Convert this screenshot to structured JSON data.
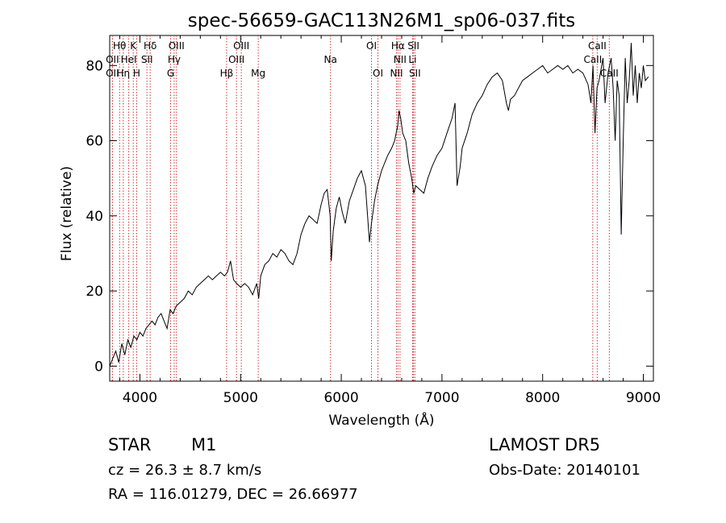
{
  "chart_data": {
    "type": "line",
    "title": "spec-56659-GAC113N26M1_sp06-037.fits",
    "xlabel": "Wavelength (Å)",
    "ylabel": "Flux (relative)",
    "xlim": [
      3700,
      9100
    ],
    "ylim": [
      -4,
      88
    ],
    "xticks": [
      4000,
      5000,
      6000,
      7000,
      8000,
      9000
    ],
    "yticks": [
      0,
      20,
      40,
      60,
      80
    ],
    "xtick_labels": [
      "4000",
      "5000",
      "6000",
      "7000",
      "8000",
      "9000"
    ],
    "ytick_labels": [
      "0",
      "20",
      "40",
      "60",
      "80"
    ],
    "grid": false,
    "line_color": "#000000",
    "marker_color": "#cc3333",
    "series": [
      {
        "x": [
          3700,
          3730,
          3760,
          3790,
          3820,
          3850,
          3880,
          3910,
          3940,
          3970,
          4000,
          4030,
          4060,
          4090,
          4120,
          4150,
          4180,
          4210,
          4240,
          4270,
          4300,
          4330,
          4360,
          4400,
          4440,
          4480,
          4520,
          4560,
          4600,
          4640,
          4680,
          4720,
          4760,
          4800,
          4840,
          4870,
          4900,
          4930,
          4960,
          5000,
          5040,
          5080,
          5120,
          5160,
          5180,
          5200,
          5240,
          5280,
          5320,
          5360,
          5400,
          5440,
          5480,
          5520,
          5560,
          5600,
          5640,
          5680,
          5720,
          5760,
          5800,
          5830,
          5860,
          5890,
          5900,
          5920,
          5950,
          5980,
          6010,
          6040,
          6080,
          6120,
          6160,
          6200,
          6240,
          6280,
          6300,
          6330,
          6360,
          6400,
          6430,
          6460,
          6500,
          6530,
          6560,
          6575,
          6590,
          6610,
          6640,
          6670,
          6700,
          6720,
          6740,
          6780,
          6820,
          6860,
          6900,
          6950,
          7000,
          7050,
          7100,
          7130,
          7150,
          7180,
          7200,
          7250,
          7300,
          7350,
          7400,
          7450,
          7500,
          7550,
          7600,
          7640,
          7660,
          7680,
          7720,
          7760,
          7800,
          7850,
          7900,
          7950,
          8000,
          8050,
          8100,
          8150,
          8200,
          8250,
          8300,
          8350,
          8400,
          8450,
          8480,
          8500,
          8520,
          8540,
          8560,
          8600,
          8620,
          8650,
          8680,
          8700,
          8720,
          8740,
          8760,
          8780,
          8800,
          8820,
          8840,
          8860,
          8880,
          8900,
          8920,
          8940,
          8960,
          8980,
          9000,
          9020,
          9050
        ],
        "y": [
          0,
          2,
          4,
          1,
          6,
          3,
          7,
          5,
          8,
          7,
          9,
          8,
          10,
          11,
          12,
          11,
          13,
          14,
          12,
          10,
          15,
          14,
          16,
          17,
          18,
          20,
          19,
          21,
          22,
          23,
          24,
          23,
          24,
          25,
          24,
          25,
          28,
          23,
          22,
          21,
          22,
          21,
          19,
          22,
          18,
          24,
          27,
          28,
          30,
          29,
          31,
          30,
          28,
          27,
          30,
          35,
          38,
          40,
          39,
          38,
          43,
          46,
          47,
          40,
          28,
          36,
          42,
          45,
          41,
          38,
          44,
          47,
          50,
          52,
          48,
          33,
          38,
          44,
          48,
          52,
          54,
          56,
          58,
          60,
          64,
          68,
          66,
          62,
          60,
          54,
          50,
          46,
          48,
          47,
          46,
          50,
          53,
          56,
          58,
          62,
          66,
          70,
          48,
          53,
          58,
          62,
          67,
          70,
          72,
          75,
          77,
          78,
          76,
          70,
          68,
          71,
          72,
          74,
          76,
          77,
          78,
          79,
          80,
          78,
          79,
          80,
          79,
          80,
          78,
          79,
          78,
          75,
          70,
          80,
          62,
          74,
          76,
          82,
          70,
          78,
          82,
          74,
          60,
          76,
          72,
          35,
          60,
          82,
          70,
          76,
          86,
          72,
          80,
          70,
          78,
          74,
          80,
          76,
          77
        ]
      }
    ],
    "line_markers": [
      {
        "name": "Hθ",
        "x": 3798,
        "row": 0
      },
      {
        "name": "K",
        "x": 3934,
        "row": 0
      },
      {
        "name": "Hδ",
        "x": 4102,
        "row": 0
      },
      {
        "name": "OIII",
        "x": 4363,
        "row": 0
      },
      {
        "name": "OIII",
        "x": 5007,
        "row": 0
      },
      {
        "name": "Na",
        "x": 5893,
        "row": 1
      },
      {
        "name": "OI",
        "x": 6300,
        "row": 0
      },
      {
        "name": "OI",
        "x": 6364,
        "row": 2
      },
      {
        "name": "Hα",
        "x": 6563,
        "row": 0
      },
      {
        "name": "NII",
        "x": 6583,
        "row": 1
      },
      {
        "name": "NII",
        "x": 6548,
        "row": 2
      },
      {
        "name": "SII",
        "x": 6717,
        "row": 0
      },
      {
        "name": "Li",
        "x": 6708,
        "row": 1
      },
      {
        "name": "SII",
        "x": 6731,
        "row": 2
      },
      {
        "name": "OII",
        "x": 3727,
        "row": 1
      },
      {
        "name": "HeI",
        "x": 3889,
        "row": 1
      },
      {
        "name": "SII",
        "x": 4070,
        "row": 1
      },
      {
        "name": "Hγ",
        "x": 4340,
        "row": 1
      },
      {
        "name": "OIII",
        "x": 4959,
        "row": 1
      },
      {
        "name": "OII",
        "x": 3727,
        "row": 2
      },
      {
        "name": "Hη",
        "x": 3835,
        "row": 2
      },
      {
        "name": "H",
        "x": 3968,
        "row": 2
      },
      {
        "name": "G",
        "x": 4305,
        "row": 2
      },
      {
        "name": "Hβ",
        "x": 4861,
        "row": 2
      },
      {
        "name": "Mg",
        "x": 5175,
        "row": 2
      },
      {
        "name": "CaII",
        "x": 8498,
        "row": 1
      },
      {
        "name": "CaII",
        "x": 8542,
        "row": 0
      },
      {
        "name": "CaII",
        "x": 8662,
        "row": 2
      }
    ]
  },
  "info": {
    "class": "STAR",
    "subclass": "M1",
    "survey": "LAMOST DR5",
    "cz": "cz = 26.3 ± 8.7 km/s",
    "obs_date": "Obs-Date: 20140101",
    "radec": "RA = 116.01279, DEC =  26.66977"
  }
}
